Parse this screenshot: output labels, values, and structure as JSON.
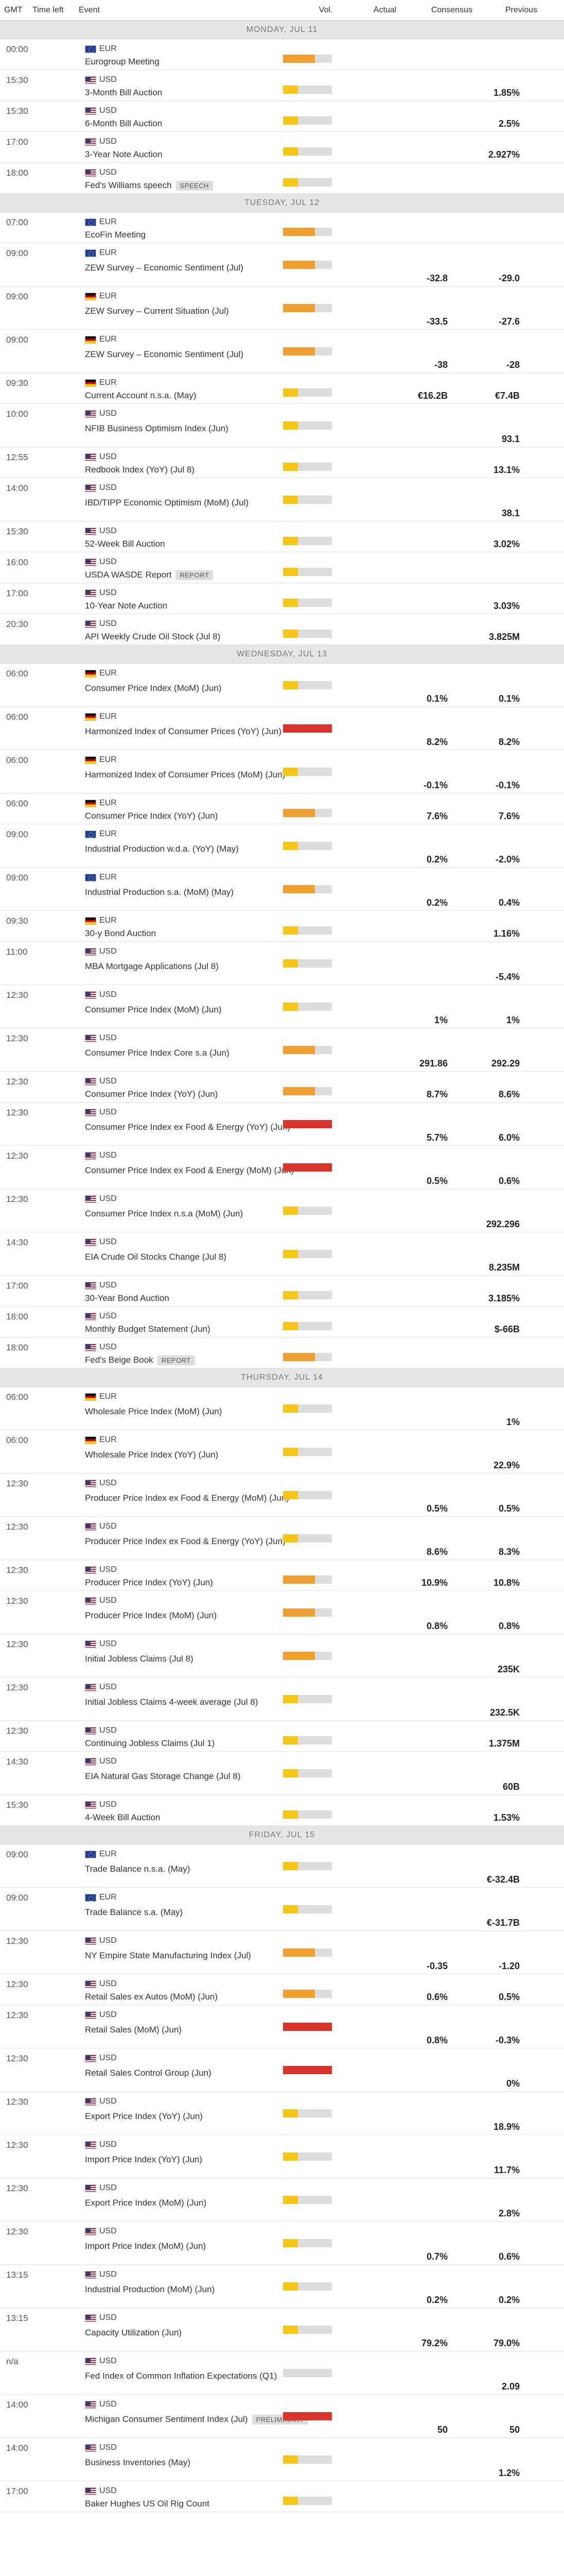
{
  "header": {
    "gmt": "GMT",
    "time_left": "Time left",
    "event": "Event",
    "vol": "Vol.",
    "actual": "Actual",
    "consensus": "Consensus",
    "previous": "Previous"
  },
  "colors": {
    "vol_medium": "#f0a030",
    "vol_low": "#f5c518",
    "vol_high": "#d9342b",
    "vol_empty": "#dddddd"
  },
  "days": [
    {
      "label": "MONDAY, JUL 11",
      "events": [
        {
          "time": "00:00",
          "currency": "EUR",
          "flag": "eur",
          "name": "Eurogroup Meeting",
          "vol": "medium",
          "actual": "",
          "consensus": "",
          "previous": "",
          "h": 60
        },
        {
          "time": "15:30",
          "currency": "USD",
          "flag": "usd",
          "name": "3-Month Bill Auction",
          "vol": "low",
          "actual": "",
          "consensus": "",
          "previous": "1.85%",
          "h": 60
        },
        {
          "time": "15:30",
          "currency": "USD",
          "flag": "usd",
          "name": "6-Month Bill Auction",
          "vol": "low",
          "actual": "",
          "consensus": "",
          "previous": "2.5%",
          "h": 60
        },
        {
          "time": "17:00",
          "currency": "USD",
          "flag": "usd",
          "name": "3-Year Note Auction",
          "vol": "low",
          "actual": "",
          "consensus": "",
          "previous": "2.927%",
          "h": 60
        },
        {
          "time": "18:00",
          "currency": "USD",
          "flag": "usd",
          "name": "Fed's Williams speech",
          "badge": "SPEECH",
          "vol": "low",
          "actual": "",
          "consensus": "",
          "previous": "",
          "h": 60
        }
      ]
    },
    {
      "label": "TUESDAY, JUL 12",
      "events": [
        {
          "time": "07:00",
          "currency": "EUR",
          "flag": "eur",
          "name": "EcoFin Meeting",
          "vol": "medium",
          "actual": "",
          "consensus": "",
          "previous": "",
          "h": 60
        },
        {
          "time": "09:00",
          "currency": "EUR",
          "flag": "eur",
          "name": "ZEW Survey – Economic Sentiment (Jul)",
          "vol": "medium",
          "actual": "",
          "consensus": "-32.8",
          "previous": "-29.0",
          "h": 84
        },
        {
          "time": "09:00",
          "currency": "EUR",
          "flag": "de",
          "name": "ZEW Survey – Current Situation (Jul)",
          "vol": "medium",
          "actual": "",
          "consensus": "-33.5",
          "previous": "-27.6",
          "h": 84
        },
        {
          "time": "09:00",
          "currency": "EUR",
          "flag": "de",
          "name": "ZEW Survey – Economic Sentiment (Jul)",
          "vol": "medium",
          "actual": "",
          "consensus": "-38",
          "previous": "-28",
          "h": 84
        },
        {
          "time": "09:30",
          "currency": "EUR",
          "flag": "de",
          "name": "Current Account n.s.a. (May)",
          "vol": "low",
          "actual": "",
          "consensus": "€16.2B",
          "previous": "€7.4B",
          "h": 60
        },
        {
          "time": "10:00",
          "currency": "USD",
          "flag": "usd",
          "name": "NFIB Business Optimism Index (Jun)",
          "vol": "low",
          "actual": "",
          "consensus": "",
          "previous": "93.1",
          "h": 84
        },
        {
          "time": "12:55",
          "currency": "USD",
          "flag": "usd",
          "name": "Redbook Index (YoY) (Jul 8)",
          "vol": "low",
          "actual": "",
          "consensus": "",
          "previous": "13.1%",
          "h": 60
        },
        {
          "time": "14:00",
          "currency": "USD",
          "flag": "usd",
          "name": "IBD/TIPP Economic Optimism (MoM) (Jul)",
          "vol": "low",
          "actual": "",
          "consensus": "",
          "previous": "38.1",
          "h": 84
        },
        {
          "time": "15:30",
          "currency": "USD",
          "flag": "usd",
          "name": "52-Week Bill Auction",
          "vol": "low",
          "actual": "",
          "consensus": "",
          "previous": "3.02%",
          "h": 60
        },
        {
          "time": "16:00",
          "currency": "USD",
          "flag": "usd",
          "name": "USDA WASDE Report",
          "badge": "REPORT",
          "vol": "low",
          "actual": "",
          "consensus": "",
          "previous": "",
          "h": 60
        },
        {
          "time": "17:00",
          "currency": "USD",
          "flag": "usd",
          "name": "10-Year Note Auction",
          "vol": "low",
          "actual": "",
          "consensus": "",
          "previous": "3.03%",
          "h": 60
        },
        {
          "time": "20:30",
          "currency": "USD",
          "flag": "usd",
          "name": "API Weekly Crude Oil Stock (Jul 8)",
          "vol": "low",
          "actual": "",
          "consensus": "",
          "previous": "3.825M",
          "h": 60
        }
      ]
    },
    {
      "label": "WEDNESDAY, JUL 13",
      "events": [
        {
          "time": "06:00",
          "currency": "EUR",
          "flag": "de",
          "name": "Consumer Price Index (MoM) (Jun)",
          "vol": "low",
          "actual": "",
          "consensus": "0.1%",
          "previous": "0.1%",
          "h": 84
        },
        {
          "time": "06:00",
          "currency": "EUR",
          "flag": "de",
          "name": "Harmonized Index of Consumer Prices (YoY) (Jun)",
          "vol": "high",
          "actual": "",
          "consensus": "8.2%",
          "previous": "8.2%",
          "h": 84
        },
        {
          "time": "06:00",
          "currency": "EUR",
          "flag": "de",
          "name": "Harmonized Index of Consumer Prices (MoM) (Jun)",
          "vol": "low",
          "actual": "",
          "consensus": "-0.1%",
          "previous": "-0.1%",
          "h": 84
        },
        {
          "time": "06:00",
          "currency": "EUR",
          "flag": "de",
          "name": "Consumer Price Index (YoY) (Jun)",
          "vol": "medium",
          "actual": "",
          "consensus": "7.6%",
          "previous": "7.6%",
          "h": 60
        },
        {
          "time": "09:00",
          "currency": "EUR",
          "flag": "eur",
          "name": "Industrial Production w.d.a. (YoY) (May)",
          "vol": "low",
          "actual": "",
          "consensus": "0.2%",
          "previous": "-2.0%",
          "h": 84
        },
        {
          "time": "09:00",
          "currency": "EUR",
          "flag": "eur",
          "name": "Industrial Production s.a. (MoM) (May)",
          "vol": "medium",
          "actual": "",
          "consensus": "0.2%",
          "previous": "0.4%",
          "h": 84
        },
        {
          "time": "09:30",
          "currency": "EUR",
          "flag": "de",
          "name": "30-y Bond Auction",
          "vol": "low",
          "actual": "",
          "consensus": "",
          "previous": "1.16%",
          "h": 60
        },
        {
          "time": "11:00",
          "currency": "USD",
          "flag": "usd",
          "name": "MBA Mortgage Applications (Jul 8)",
          "vol": "low",
          "actual": "",
          "consensus": "",
          "previous": "-5.4%",
          "h": 84
        },
        {
          "time": "12:30",
          "currency": "USD",
          "flag": "usd",
          "name": "Consumer Price Index (MoM) (Jun)",
          "vol": "low",
          "actual": "",
          "consensus": "1%",
          "previous": "1%",
          "h": 84
        },
        {
          "time": "12:30",
          "currency": "USD",
          "flag": "usd",
          "name": "Consumer Price Index Core s.a (Jun)",
          "vol": "medium",
          "actual": "",
          "consensus": "291.86",
          "previous": "292.29",
          "h": 84
        },
        {
          "time": "12:30",
          "currency": "USD",
          "flag": "usd",
          "name": "Consumer Price Index (YoY) (Jun)",
          "vol": "medium",
          "actual": "",
          "consensus": "8.7%",
          "previous": "8.6%",
          "h": 60
        },
        {
          "time": "12:30",
          "currency": "USD",
          "flag": "usd",
          "name": "Consumer Price Index ex Food & Energy (YoY) (Jun)",
          "vol": "high",
          "actual": "",
          "consensus": "5.7%",
          "previous": "6.0%",
          "h": 84
        },
        {
          "time": "12:30",
          "currency": "USD",
          "flag": "usd",
          "name": "Consumer Price Index ex Food & Energy (MoM) (Jun)",
          "vol": "high",
          "actual": "",
          "consensus": "0.5%",
          "previous": "0.6%",
          "h": 84
        },
        {
          "time": "12:30",
          "currency": "USD",
          "flag": "usd",
          "name": "Consumer Price Index n.s.a (MoM) (Jun)",
          "vol": "low",
          "actual": "",
          "consensus": "",
          "previous": "292.296",
          "h": 84
        },
        {
          "time": "14:30",
          "currency": "USD",
          "flag": "usd",
          "name": "EIA Crude Oil Stocks Change (Jul 8)",
          "vol": "low",
          "actual": "",
          "consensus": "",
          "previous": "8.235M",
          "h": 84
        },
        {
          "time": "17:00",
          "currency": "USD",
          "flag": "usd",
          "name": "30-Year Bond Auction",
          "vol": "low",
          "actual": "",
          "consensus": "",
          "previous": "3.185%",
          "h": 60
        },
        {
          "time": "18:00",
          "currency": "USD",
          "flag": "usd",
          "name": "Monthly Budget Statement (Jun)",
          "vol": "low",
          "actual": "",
          "consensus": "",
          "previous": "$-66B",
          "h": 60
        },
        {
          "time": "18:00",
          "currency": "USD",
          "flag": "usd",
          "name": "Fed's Beige Book",
          "badge": "REPORT",
          "vol": "medium",
          "actual": "",
          "consensus": "",
          "previous": "",
          "h": 60
        }
      ]
    },
    {
      "label": "THURSDAY, JUL 14",
      "events": [
        {
          "time": "06:00",
          "currency": "EUR",
          "flag": "de",
          "name": "Wholesale Price Index (MoM) (Jun)",
          "vol": "low",
          "actual": "",
          "consensus": "",
          "previous": "1%",
          "h": 84
        },
        {
          "time": "06:00",
          "currency": "EUR",
          "flag": "de",
          "name": "Wholesale Price Index (YoY) (Jun)",
          "vol": "low",
          "actual": "",
          "consensus": "",
          "previous": "22.9%",
          "h": 84
        },
        {
          "time": "12:30",
          "currency": "USD",
          "flag": "usd",
          "name": "Producer Price Index ex Food & Energy (MoM) (Jun)",
          "vol": "low",
          "actual": "",
          "consensus": "0.5%",
          "previous": "0.5%",
          "h": 84
        },
        {
          "time": "12:30",
          "currency": "USD",
          "flag": "usd",
          "name": "Producer Price Index ex Food & Energy (YoY) (Jun)",
          "vol": "low",
          "actual": "",
          "consensus": "8.6%",
          "previous": "8.3%",
          "h": 84
        },
        {
          "time": "12:30",
          "currency": "USD",
          "flag": "usd",
          "name": "Producer Price Index (YoY) (Jun)",
          "vol": "medium",
          "actual": "",
          "consensus": "10.9%",
          "previous": "10.8%",
          "h": 60
        },
        {
          "time": "12:30",
          "currency": "USD",
          "flag": "usd",
          "name": "Producer Price Index (MoM) (Jun)",
          "vol": "medium",
          "actual": "",
          "consensus": "0.8%",
          "previous": "0.8%",
          "h": 84
        },
        {
          "time": "12:30",
          "currency": "USD",
          "flag": "usd",
          "name": "Initial Jobless Claims (Jul 8)",
          "vol": "medium",
          "actual": "",
          "consensus": "",
          "previous": "235K",
          "h": 84
        },
        {
          "time": "12:30",
          "currency": "USD",
          "flag": "usd",
          "name": "Initial Jobless Claims 4-week average (Jul 8)",
          "vol": "low",
          "actual": "",
          "consensus": "",
          "previous": "232.5K",
          "h": 84
        },
        {
          "time": "12:30",
          "currency": "USD",
          "flag": "usd",
          "name": "Continuing Jobless Claims (Jul 1)",
          "vol": "low",
          "actual": "",
          "consensus": "",
          "previous": "1.375M",
          "h": 60
        },
        {
          "time": "14:30",
          "currency": "USD",
          "flag": "usd",
          "name": "EIA Natural Gas Storage Change (Jul 8)",
          "vol": "low",
          "actual": "",
          "consensus": "",
          "previous": "60B",
          "h": 84
        },
        {
          "time": "15:30",
          "currency": "USD",
          "flag": "usd",
          "name": "4-Week Bill Auction",
          "vol": "low",
          "actual": "",
          "consensus": "",
          "previous": "1.53%",
          "h": 60
        }
      ]
    },
    {
      "label": "FRIDAY, JUL 15",
      "events": [
        {
          "time": "09:00",
          "currency": "EUR",
          "flag": "eur",
          "name": "Trade Balance n.s.a. (May)",
          "vol": "low",
          "actual": "",
          "consensus": "",
          "previous": "€-32.4B",
          "h": 84
        },
        {
          "time": "09:00",
          "currency": "EUR",
          "flag": "eur",
          "name": "Trade Balance s.a. (May)",
          "vol": "low",
          "actual": "",
          "consensus": "",
          "previous": "€-31.7B",
          "h": 84
        },
        {
          "time": "12:30",
          "currency": "USD",
          "flag": "usd",
          "name": "NY Empire State Manufacturing Index (Jul)",
          "vol": "medium",
          "actual": "",
          "consensus": "-0.35",
          "previous": "-1.20",
          "h": 84
        },
        {
          "time": "12:30",
          "currency": "USD",
          "flag": "usd",
          "name": "Retail Sales ex Autos (MoM) (Jun)",
          "vol": "medium",
          "actual": "",
          "consensus": "0.6%",
          "previous": "0.5%",
          "h": 60
        },
        {
          "time": "12:30",
          "currency": "USD",
          "flag": "usd",
          "name": "Retail Sales (MoM) (Jun)",
          "vol": "high",
          "actual": "",
          "consensus": "0.8%",
          "previous": "-0.3%",
          "h": 84
        },
        {
          "time": "12:30",
          "currency": "USD",
          "flag": "usd",
          "name": "Retail Sales Control Group (Jun)",
          "vol": "high",
          "actual": "",
          "consensus": "",
          "previous": "0%",
          "h": 84
        },
        {
          "time": "12:30",
          "currency": "USD",
          "flag": "usd",
          "name": "Export Price Index (YoY) (Jun)",
          "vol": "low",
          "actual": "",
          "consensus": "",
          "previous": "18.9%",
          "h": 84
        },
        {
          "time": "12:30",
          "currency": "USD",
          "flag": "usd",
          "name": "Import Price Index (YoY) (Jun)",
          "vol": "low",
          "actual": "",
          "consensus": "",
          "previous": "11.7%",
          "h": 84
        },
        {
          "time": "12:30",
          "currency": "USD",
          "flag": "usd",
          "name": "Export Price Index (MoM) (Jun)",
          "vol": "low",
          "actual": "",
          "consensus": "",
          "previous": "2.8%",
          "h": 84
        },
        {
          "time": "12:30",
          "currency": "USD",
          "flag": "usd",
          "name": "Import Price Index (MoM) (Jun)",
          "vol": "low",
          "actual": "",
          "consensus": "0.7%",
          "previous": "0.6%",
          "h": 84
        },
        {
          "time": "13:15",
          "currency": "USD",
          "flag": "usd",
          "name": "Industrial Production (MoM) (Jun)",
          "vol": "low",
          "actual": "",
          "consensus": "0.2%",
          "previous": "0.2%",
          "h": 84
        },
        {
          "time": "13:15",
          "currency": "USD",
          "flag": "usd",
          "name": "Capacity Utilization (Jun)",
          "vol": "low",
          "actual": "",
          "consensus": "79.2%",
          "previous": "79.0%",
          "h": 84
        },
        {
          "time": "n/a",
          "currency": "USD",
          "flag": "usd",
          "name": "Fed Index of Common Inflation Expectations (Q1)",
          "vol": "none",
          "actual": "",
          "consensus": "",
          "previous": "2.09",
          "h": 84
        },
        {
          "time": "14:00",
          "currency": "USD",
          "flag": "usd",
          "name": "Michigan Consumer Sentiment Index (Jul)",
          "badge": "PRELIMINARY",
          "vol": "high",
          "actual": "",
          "consensus": "50",
          "previous": "50",
          "h": 84
        },
        {
          "time": "14:00",
          "currency": "USD",
          "flag": "usd",
          "name": "Business Inventories (May)",
          "vol": "low",
          "actual": "",
          "consensus": "",
          "previous": "1.2%",
          "h": 84
        },
        {
          "time": "17:00",
          "currency": "USD",
          "flag": "usd",
          "name": "Baker Hughes US Oil Rig Count",
          "vol": "low",
          "actual": "",
          "consensus": "",
          "previous": "",
          "h": 60
        }
      ]
    }
  ]
}
